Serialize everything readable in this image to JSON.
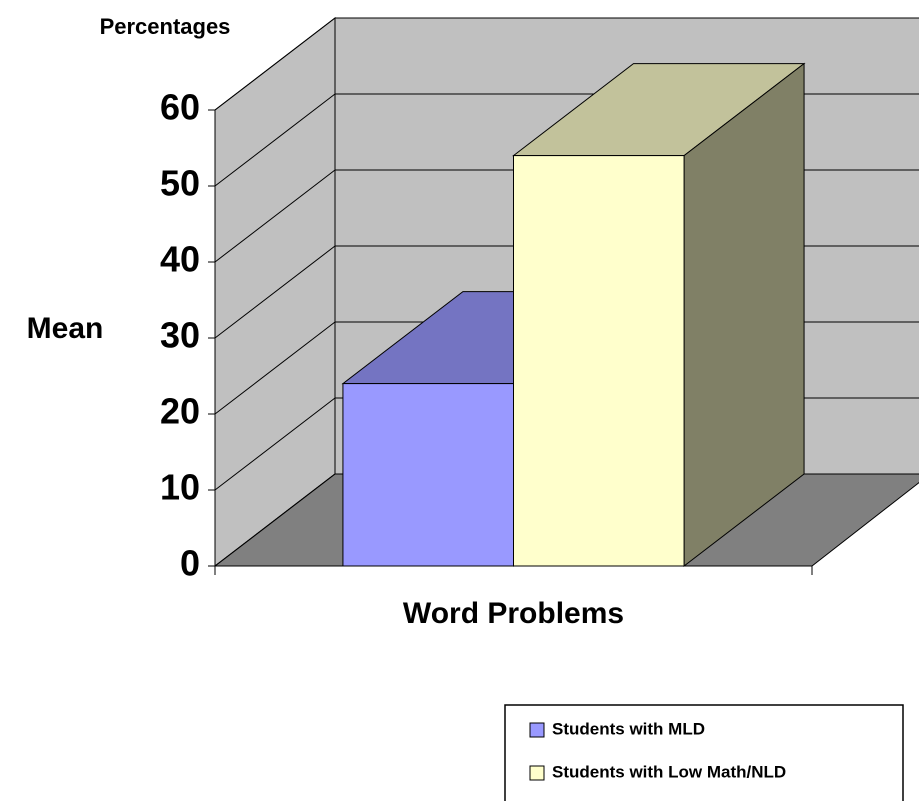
{
  "chart_data": {
    "type": "bar3d",
    "y_unit_label": "Percentages",
    "y_label": "Mean",
    "categories": [
      "Word Problems"
    ],
    "series": [
      {
        "name": "Students with MLD",
        "color": "#9999ff",
        "values": [
          24
        ]
      },
      {
        "name": "Students with Low Math/NLD",
        "color": "#ffffcc",
        "values": [
          54
        ]
      }
    ],
    "ylim": [
      0,
      60
    ],
    "yticks": [
      0,
      10,
      20,
      30,
      40,
      50,
      60
    ],
    "grid": true,
    "legend": "bottom-right"
  }
}
